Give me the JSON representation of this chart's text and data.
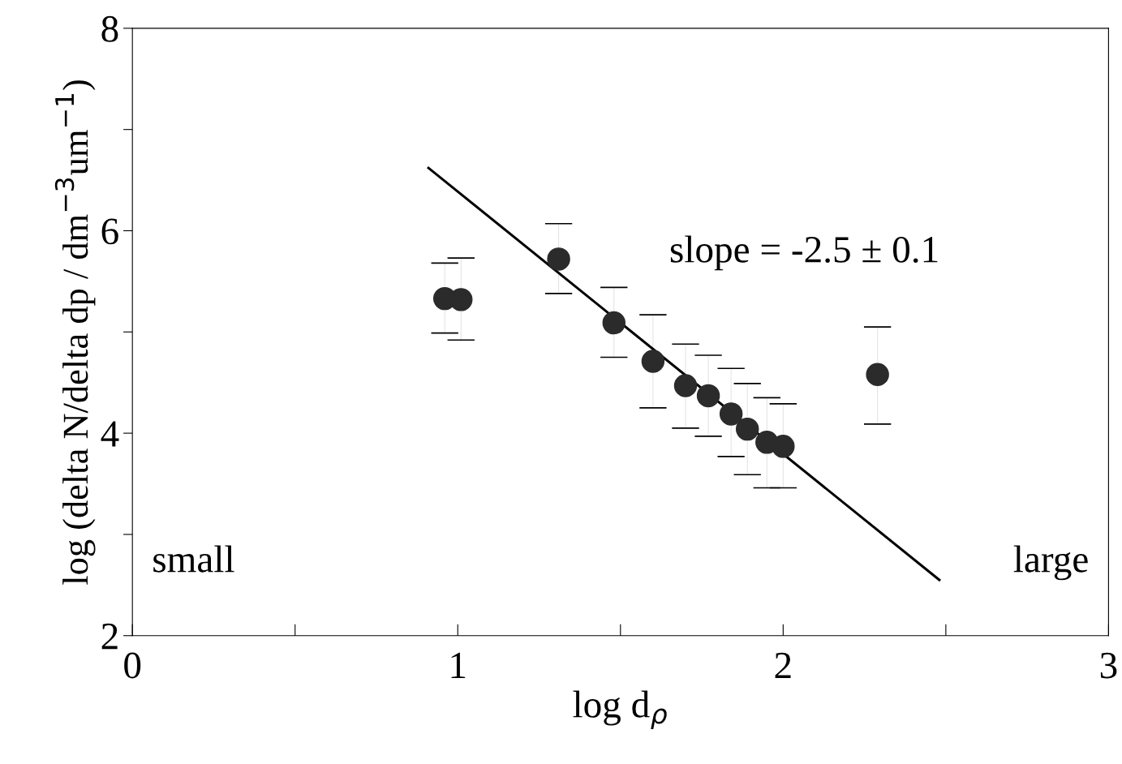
{
  "chart_data": {
    "type": "scatter",
    "xlabel": "log d$_{ρ}$",
    "ylabel": "log (delta N/delta dp / dm$^{−3}$um$^{−1}$)",
    "x": [
      0.96,
      1.01,
      1.31,
      1.48,
      1.6,
      1.7,
      1.77,
      1.84,
      1.89,
      1.95,
      2.0,
      2.29
    ],
    "series": [
      {
        "color": "#2b2b2b",
        "marker": "circle",
        "values": [
          5.33,
          5.32,
          5.72,
          5.09,
          4.71,
          4.47,
          4.37,
          4.19,
          4.04,
          3.91,
          3.87,
          4.58
        ],
        "errors": [
          [
            4.99,
            5.68
          ],
          [
            4.92,
            5.73
          ],
          [
            5.38,
            6.07
          ],
          [
            4.75,
            5.44
          ],
          [
            4.25,
            5.17
          ],
          [
            4.05,
            4.88
          ],
          [
            3.97,
            4.77
          ],
          [
            3.77,
            4.64
          ],
          [
            3.59,
            4.49
          ],
          [
            3.46,
            4.35
          ],
          [
            3.46,
            4.29
          ],
          [
            4.09,
            5.05
          ]
        ]
      },
      {
        "type": "line",
        "color": "#000000",
        "x": [
          0.91,
          2.48
        ],
        "values": [
          6.62,
          2.55
        ]
      }
    ],
    "annotations": [
      "slope = -2.5 ± 0.1",
      "small",
      "large"
    ],
    "xlim": [
      0,
      3
    ],
    "ylim": [
      2,
      8
    ],
    "xticks": [
      0,
      {
        "value": 0.5,
        "label": null
      },
      1,
      {
        "value": 1.5,
        "label": null
      },
      2,
      {
        "value": 2.5,
        "label": null
      },
      3
    ],
    "yticks": [
      2,
      {
        "value": 3,
        "label": null
      },
      4,
      {
        "value": 5,
        "label": null
      },
      6,
      {
        "value": 7,
        "label": null
      },
      8
    ],
    "grid": false,
    "legend": false
  }
}
